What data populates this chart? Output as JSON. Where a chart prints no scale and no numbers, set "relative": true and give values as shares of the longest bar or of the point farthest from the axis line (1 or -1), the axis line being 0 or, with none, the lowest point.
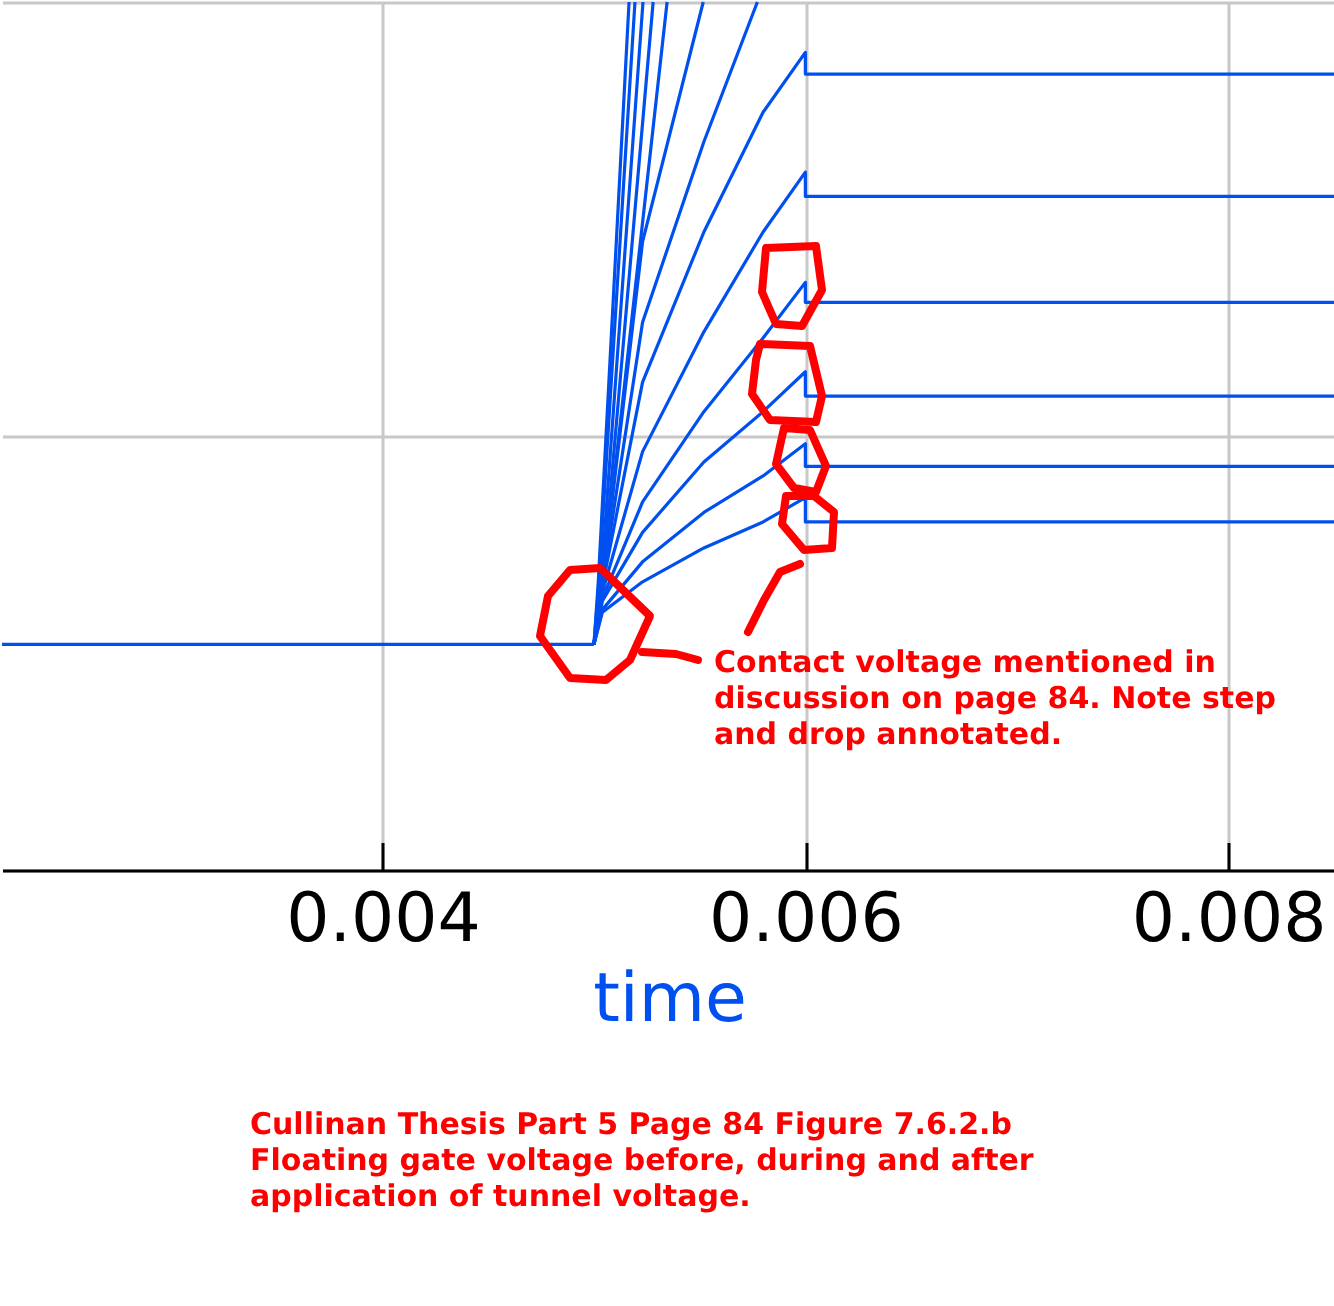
{
  "chart_data": {
    "type": "line",
    "xlabel": "time",
    "relative": true,
    "grid": true,
    "tick_labels": "x",
    "marker": "none",
    "line_style": "solid",
    "xlim": [
      0.0022,
      0.00851
    ],
    "xticks": [
      0.004,
      0.006,
      0.008
    ],
    "annotations": [
      "Contact voltage mentioned in discussion on page 84.  Note step and drop annotated.",
      "Cullinan Thesis Part 5 Page 84 Figure 7.6.2.b Floating gate voltage before, during and after application of tunnel voltage."
    ],
    "series": [
      {
        "color": "#0050f0",
        "x": [
          0.0022,
          0.005
        ],
        "values": [
          0.26,
          0.26
        ]
      },
      {
        "color": "#0050f0",
        "x": [
          0.005,
          0.00504,
          0.00523,
          0.00552,
          0.0058,
          0.006,
          0.006,
          0.00851
        ],
        "values": [
          0.26,
          0.297,
          0.332,
          0.371,
          0.401,
          0.429,
          0.401,
          0.401
        ]
      },
      {
        "color": "#0050f0",
        "x": [
          0.005,
          0.00504,
          0.00523,
          0.00552,
          0.0058,
          0.006,
          0.006,
          0.00851
        ],
        "values": [
          0.26,
          0.3,
          0.355,
          0.412,
          0.454,
          0.491,
          0.465,
          0.465
        ]
      },
      {
        "color": "#0050f0",
        "x": [
          0.005,
          0.00504,
          0.00523,
          0.00552,
          0.0058,
          0.006,
          0.006,
          0.00851
        ],
        "values": [
          0.26,
          0.31,
          0.389,
          0.47,
          0.528,
          0.574,
          0.546,
          0.546
        ]
      },
      {
        "color": "#0050f0",
        "x": [
          0.005,
          0.00504,
          0.00523,
          0.00552,
          0.0058,
          0.006,
          0.006,
          0.00851
        ],
        "values": [
          0.26,
          0.313,
          0.424,
          0.528,
          0.613,
          0.677,
          0.654,
          0.654
        ]
      },
      {
        "color": "#0050f0",
        "x": [
          0.005,
          0.00504,
          0.00523,
          0.00552,
          0.0058,
          0.006,
          0.006,
          0.00851
        ],
        "values": [
          0.26,
          0.32,
          0.482,
          0.62,
          0.735,
          0.804,
          0.776,
          0.776
        ]
      },
      {
        "color": "#0050f0",
        "x": [
          0.005,
          0.00504,
          0.00523,
          0.00552,
          0.0058,
          0.006,
          0.006,
          0.00851
        ],
        "values": [
          0.26,
          0.327,
          0.562,
          0.735,
          0.873,
          0.942,
          0.917,
          0.917
        ]
      },
      {
        "color": "#0050f0",
        "x": [
          0.005,
          0.00504,
          0.00523,
          0.00552,
          0.005773
        ],
        "values": [
          0.26,
          0.33,
          0.631,
          0.839,
          1
        ]
      },
      {
        "color": "#0050f0",
        "x": [
          0.005,
          0.00504,
          0.00523,
          0.005517
        ],
        "values": [
          0.26,
          0.33,
          0.724,
          1
        ]
      },
      {
        "color": "#0050f0",
        "x": [
          0.005,
          0.00504,
          0.005346
        ],
        "values": [
          0.26,
          0.33,
          1
        ]
      },
      {
        "color": "#0050f0",
        "x": [
          0.005,
          0.00504,
          0.00528
        ],
        "values": [
          0.26,
          0.33,
          1
        ]
      },
      {
        "color": "#0050f0",
        "x": [
          0.005,
          0.00503,
          0.005232
        ],
        "values": [
          0.26,
          0.32,
          1
        ]
      },
      {
        "color": "#0050f0",
        "x": [
          0.005,
          0.00502,
          0.005194
        ],
        "values": [
          0.26,
          0.32,
          1
        ]
      },
      {
        "color": "#0050f0",
        "x": [
          0.005,
          0.00502,
          0.005166
        ],
        "values": [
          0.26,
          0.33,
          1
        ]
      }
    ]
  }
}
